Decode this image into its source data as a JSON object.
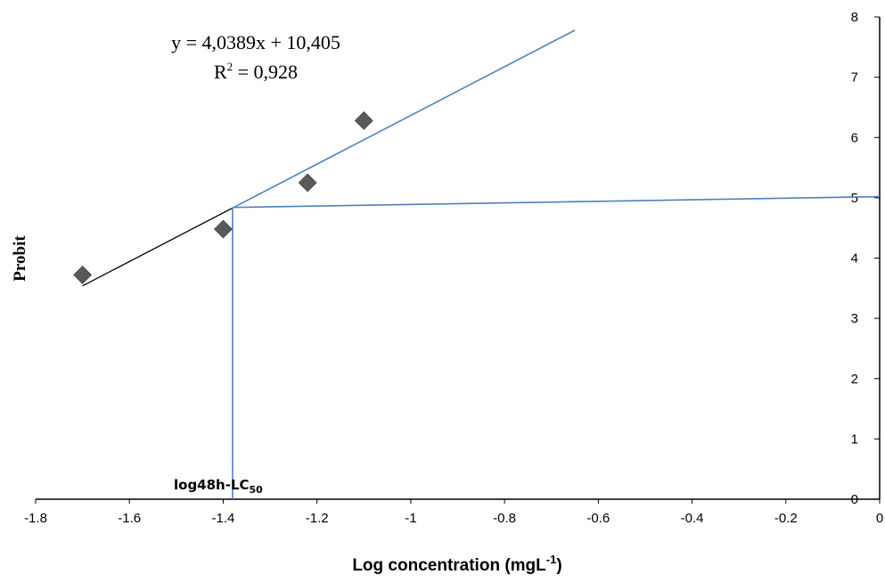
{
  "chart_data": {
    "type": "scatter",
    "ylabel": "Probit",
    "xlabel_main": "Log concentration (mgL",
    "xlabel_sup": "-1",
    "xlabel_tail": ")",
    "xlim": [
      -1.8,
      0
    ],
    "ylim": [
      0,
      8
    ],
    "x_ticks": [
      "-1.8",
      "-1.6",
      "-1.4",
      "-1.2",
      "-1",
      "-0.8",
      "-0.6",
      "-0.4",
      "-0.2",
      "0"
    ],
    "y_ticks": [
      "0",
      "1",
      "2",
      "3",
      "4",
      "5",
      "6",
      "7",
      "8"
    ],
    "y_axis_position": "right",
    "grid": false,
    "points": [
      {
        "x": -1.7,
        "y": 3.72
      },
      {
        "x": -1.4,
        "y": 4.48
      },
      {
        "x": -1.22,
        "y": 5.25
      },
      {
        "x": -1.1,
        "y": 6.28
      }
    ],
    "trendline": {
      "x_start": -1.7,
      "x_end": -1.38,
      "slope": 4.0389,
      "intercept": 10.405,
      "color": "#000000"
    },
    "projection_line": {
      "x_start": -1.38,
      "x_end": -0.65,
      "color": "#4F81BD"
    },
    "lc50_horizontal": {
      "x_start": -1.38,
      "y_start": 4.84,
      "x_end": 0,
      "y_end": 5.02,
      "color": "#4F81BD"
    },
    "lc50_vertical": {
      "x": -1.38,
      "y_start": 0,
      "y_end": 4.84,
      "color": "#4F81BD"
    },
    "equation_line1": "y = 4,0389x + 10,405",
    "equation_line2_base": "R",
    "equation_line2_sup": "2",
    "equation_line2_rest": " = 0,928",
    "annotation_base": "log48h-LC",
    "annotation_sub": "50",
    "marker_color": "#595959",
    "axis_color": "#000000"
  }
}
